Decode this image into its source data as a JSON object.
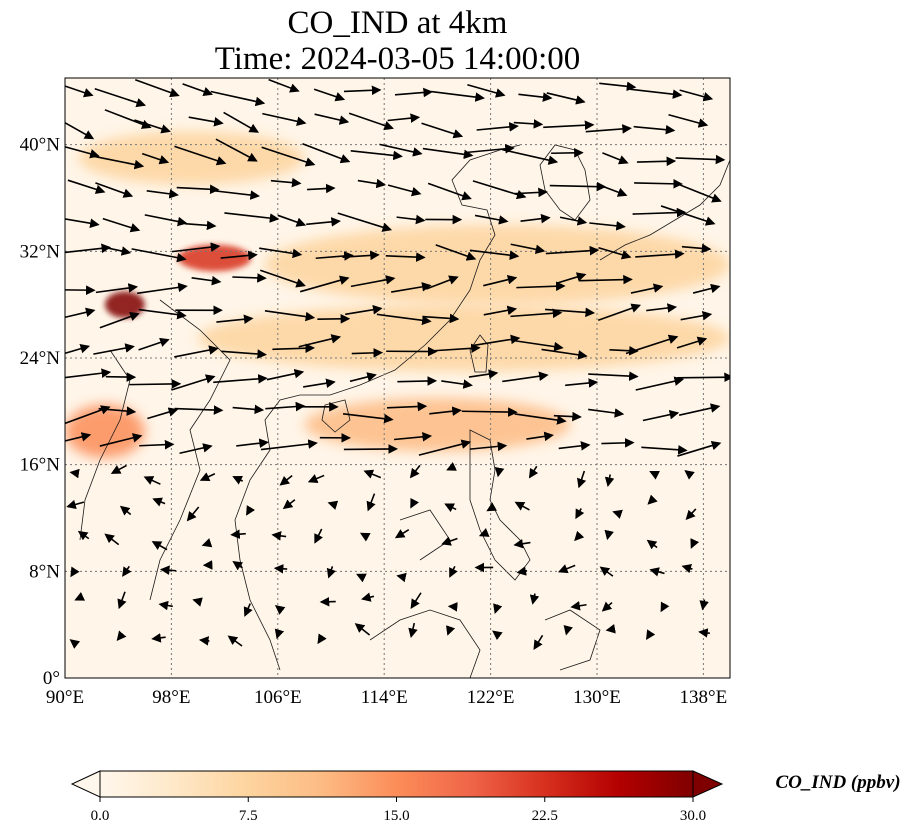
{
  "title": {
    "line1": "CO_IND at 4km",
    "line2": "Time: 2024-03-05 14:00:00"
  },
  "map": {
    "lon_range": [
      90,
      140
    ],
    "lat_range": [
      0,
      45
    ],
    "lon_ticks": [
      "90°E",
      "98°E",
      "106°E",
      "114°E",
      "122°E",
      "130°E",
      "138°E"
    ],
    "lat_ticks": [
      "0°",
      "8°N",
      "16°N",
      "24°N",
      "32°N",
      "40°N"
    ],
    "gridlines": "dotted"
  },
  "colorbar": {
    "label": "CO_IND (ppbv)",
    "ticks": [
      "0.0",
      "7.5",
      "15.0",
      "22.5",
      "30.0"
    ],
    "range": [
      0,
      30
    ],
    "colormap": "OrRd",
    "extend": "both",
    "colors": [
      "#fff7ec",
      "#fee8c8",
      "#fdd49e",
      "#fdbb84",
      "#fc8d59",
      "#ef6548",
      "#d7301f",
      "#b30000",
      "#7f0000"
    ]
  },
  "concentration_plumes": [
    {
      "lon": [
        91,
        108
      ],
      "lat": [
        37,
        41
      ],
      "level": 8
    },
    {
      "lon": [
        105,
        140
      ],
      "lat": [
        28,
        34
      ],
      "level": 8
    },
    {
      "lon": [
        100,
        140
      ],
      "lat": [
        23,
        28
      ],
      "level": 7
    },
    {
      "lon": [
        108,
        128
      ],
      "lat": [
        17,
        21
      ],
      "level": 10
    },
    {
      "lon": [
        90,
        96
      ],
      "lat": [
        16.5,
        20.5
      ],
      "level": 14
    },
    {
      "lon": [
        93,
        96
      ],
      "lat": [
        27,
        29
      ],
      "level": 30
    },
    {
      "lon": [
        98.5,
        104
      ],
      "lat": [
        30.5,
        32.5
      ],
      "level": 22
    }
  ],
  "wind_field": "quiver vectors, strong westerlies north of 16°N, weak variable winds to the south"
}
